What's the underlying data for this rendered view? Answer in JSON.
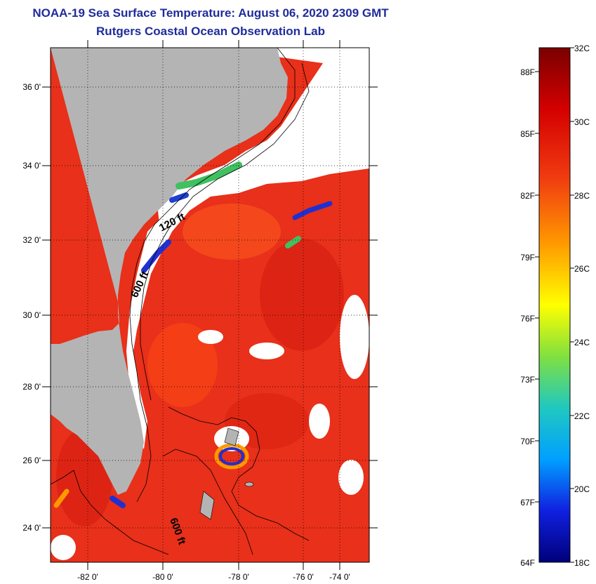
{
  "header": {
    "title": "NOAA-19 Sea Surface Temperature:  August 06, 2020 2309 GMT",
    "subtitle": "Rutgers Coastal Ocean Observation Lab"
  },
  "map": {
    "latitude_labels": [
      "36 0'",
      "34 0'",
      "32 0'",
      "30 0'",
      "28 0'",
      "26 0'",
      "24 0'"
    ],
    "longitude_labels": [
      "-82 0'",
      "-80 0'",
      "-78 0'",
      "-76 0'",
      "-74 0'"
    ],
    "lat_range": [
      23,
      37
    ],
    "lon_range": [
      -83,
      -73
    ],
    "contour_labels": [
      "120 ft",
      "600 ft",
      "600 ft"
    ],
    "colors": {
      "land": "#b4b4b4",
      "cloud": "#ffffff",
      "ocean_warm": "#ee2a10",
      "ocean_cool": "#2030d0"
    }
  },
  "colorbar": {
    "celsius_labels": [
      "32C",
      "30C",
      "28C",
      "26C",
      "24C",
      "22C",
      "20C",
      "18C"
    ],
    "fahrenheit_labels": [
      "88F",
      "85F",
      "82F",
      "79F",
      "76F",
      "73F",
      "70F",
      "67F",
      "64F"
    ],
    "range_c": [
      18,
      32
    ]
  }
}
